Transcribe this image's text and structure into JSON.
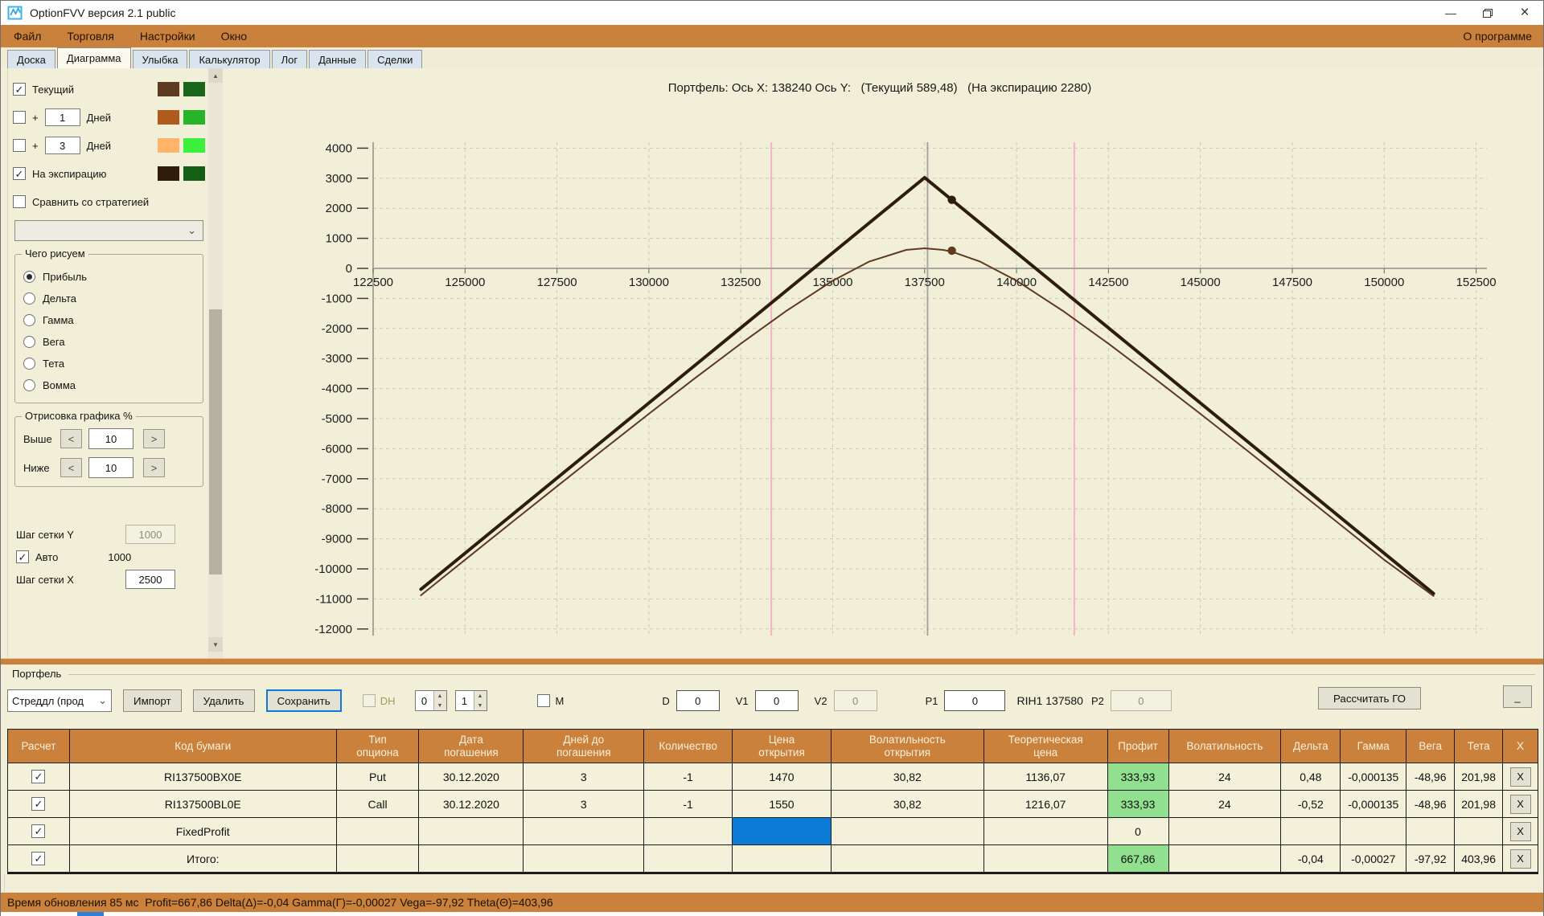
{
  "window": {
    "title": "OptionFVV версия 2.1 public"
  },
  "icons": {
    "app_icon": "line-chart-logo",
    "minimize_glyph": "—",
    "close_glyph": "×",
    "dropdown_chevron": "⌄",
    "spinner_up": "▲",
    "spinner_down": "▼",
    "scroll_up": "▲",
    "scroll_down": "▼",
    "check_mark": "✓"
  },
  "menu": {
    "items": [
      "Файл",
      "Торговля",
      "Настройки",
      "Окно"
    ],
    "right_item": "О программе"
  },
  "tabs": [
    {
      "label": "Доска",
      "active": false
    },
    {
      "label": "Диаграмма",
      "active": true
    },
    {
      "label": "Улыбка",
      "active": false
    },
    {
      "label": "Калькулятор",
      "active": false
    },
    {
      "label": "Лог",
      "active": false
    },
    {
      "label": "Данные",
      "active": false
    },
    {
      "label": "Сделки",
      "active": false
    }
  ],
  "sidebar": {
    "toggles": [
      {
        "checked": true,
        "label": "Текущий",
        "swatches": [
          "#5d3a20",
          "#1a661a"
        ]
      },
      {
        "checked": false,
        "plus": "+",
        "value": "1",
        "label": "Дней",
        "swatches": [
          "#b05a1e",
          "#28b428"
        ]
      },
      {
        "checked": false,
        "plus": "+",
        "value": "3",
        "label": "Дней",
        "swatches": [
          "#ffb469",
          "#3cf03c"
        ]
      },
      {
        "checked": true,
        "label": "На экспирацию",
        "swatches": [
          "#2d1d0a",
          "#156015"
        ]
      },
      {
        "checked": false,
        "label": "Сравнить со стратегией",
        "swatches": []
      }
    ],
    "strategy_dropdown_value": "",
    "draw_group": {
      "title": "Чего рисуем",
      "options": [
        {
          "label": "Прибыль",
          "selected": true
        },
        {
          "label": "Дельта",
          "selected": false
        },
        {
          "label": "Гамма",
          "selected": false
        },
        {
          "label": "Вега",
          "selected": false
        },
        {
          "label": "Тета",
          "selected": false
        },
        {
          "label": "Вомма",
          "selected": false
        }
      ]
    },
    "range_group": {
      "title": "Отрисовка графика %",
      "rows": [
        {
          "label": "Выше",
          "dec": "<",
          "value": "10",
          "inc": ">"
        },
        {
          "label": "Ниже",
          "dec": "<",
          "value": "10",
          "inc": ">"
        }
      ]
    },
    "grid_step": {
      "y_label": "Шаг сетки Y",
      "y_value": "1000",
      "auto": {
        "checked": true,
        "label": "Авто",
        "value": "1000"
      },
      "x_label": "Шаг сетки X",
      "x_value": "2500"
    }
  },
  "chart_data": {
    "type": "line",
    "title": "Портфель: Ось X: 138240 Ось Y:   (Текущий 589,48)   (На экспирацию 2280)",
    "xlabel": "",
    "ylabel": "",
    "grid": true,
    "legend_position": "none",
    "xlim": [
      122500,
      152900
    ],
    "ylim": [
      -12200,
      4100
    ],
    "x_ticks": [
      122500,
      125000,
      127500,
      130000,
      132500,
      135000,
      137500,
      140000,
      142500,
      145000,
      147500,
      150000,
      152500
    ],
    "y_ticks": [
      4000,
      3000,
      2000,
      1000,
      0,
      -1000,
      -2000,
      -3000,
      -4000,
      -5000,
      -6000,
      -7000,
      -8000,
      -9000,
      -10000,
      -11000,
      -12000
    ],
    "series": [
      {
        "name": "На экспирацию",
        "color": "#2d1d0a",
        "width": 4,
        "points": [
          [
            123800,
            -10680
          ],
          [
            137500,
            3020
          ],
          [
            151340,
            -10820
          ]
        ]
      },
      {
        "name": "Текущий",
        "color": "#5d3a20",
        "width": 2,
        "points": [
          [
            123800,
            -10880
          ],
          [
            125000,
            -9699
          ],
          [
            126250,
            -8473
          ],
          [
            127500,
            -7253
          ],
          [
            128750,
            -6040
          ],
          [
            130000,
            -4840
          ],
          [
            131250,
            -3658
          ],
          [
            132500,
            -2505
          ],
          [
            133750,
            -1406
          ],
          [
            135000,
            -412
          ],
          [
            136000,
            231
          ],
          [
            137000,
            616
          ],
          [
            137500,
            668
          ],
          [
            138000,
            616
          ],
          [
            138240,
            555
          ],
          [
            139000,
            231
          ],
          [
            140000,
            -412
          ],
          [
            141250,
            -1406
          ],
          [
            142500,
            -2505
          ],
          [
            143750,
            -3658
          ],
          [
            145000,
            -4840
          ],
          [
            146250,
            -6040
          ],
          [
            147500,
            -7253
          ],
          [
            148750,
            -8473
          ],
          [
            150000,
            -9699
          ],
          [
            151340,
            -10900
          ]
        ]
      }
    ],
    "markers": [
      {
        "x": 138240,
        "y": 2280,
        "series": "На экспирацию",
        "color": "#2d1d0a"
      },
      {
        "x": 138240,
        "y": 589.48,
        "series": "Текущий",
        "color": "#5d3a20"
      }
    ],
    "vlines": [
      {
        "x": 137580,
        "color": "#a8a79d",
        "width": 2,
        "role": "current-price-line"
      },
      {
        "x": 133330,
        "color": "#f3b3c2",
        "width": 2,
        "role": "range-line-left"
      },
      {
        "x": 141570,
        "color": "#f3b3c2",
        "width": 2,
        "role": "range-line-right"
      }
    ]
  },
  "portfolio": {
    "group_label": "Портфель",
    "strategy_combo": "Стреддл (прод",
    "import_button": "Импорт",
    "delete_button": "Удалить",
    "save_button": "Сохранить",
    "dh": {
      "label": "DH",
      "checked": false,
      "disabled": true
    },
    "spinners": [
      "0",
      "1"
    ],
    "m": {
      "label": "M",
      "checked": false
    },
    "fields": [
      {
        "label": "D",
        "value": "0",
        "disabled": false
      },
      {
        "label": "V1",
        "value": "0",
        "disabled": false
      },
      {
        "label": "V2",
        "value": "0",
        "disabled": true
      },
      {
        "label": "P1",
        "value": "0",
        "disabled": false
      }
    ],
    "ticker": "RIH1 137580",
    "p2": {
      "label": "P2",
      "value": "0",
      "disabled": true
    },
    "calc_button": "Рассчитать ГО",
    "collapse_button": "_"
  },
  "table": {
    "headers": [
      "Расчет",
      "Код бумаги",
      "Тип\nопциона",
      "Дата\nпогашения",
      "Дней до\nпогашения",
      "Количество",
      "Цена\nоткрытия",
      "Волатильность\nоткрытия",
      "Теоретическая\nцена",
      "Профит",
      "Волатильность",
      "Дельта",
      "Гамма",
      "Вега",
      "Тета",
      "X"
    ],
    "rows": [
      {
        "checked": true,
        "code": "RI137500BX0E",
        "type": "Put",
        "expiry": "30.12.2020",
        "days": "3",
        "qty": "-1",
        "open_price": "1470",
        "open_vol": "30,82",
        "theo": "1136,07",
        "profit": "333,93",
        "profit_green": true,
        "vol": "24",
        "delta": "0,48",
        "gamma": "-0,000135",
        "vega": "-48,96",
        "theta": "201,98",
        "x": "X"
      },
      {
        "checked": true,
        "code": "RI137500BL0E",
        "type": "Call",
        "expiry": "30.12.2020",
        "days": "3",
        "qty": "-1",
        "open_price": "1550",
        "open_vol": "30,82",
        "theo": "1216,07",
        "profit": "333,93",
        "profit_green": true,
        "vol": "24",
        "delta": "-0,52",
        "gamma": "-0,000135",
        "vega": "-48,96",
        "theta": "201,98",
        "x": "X"
      },
      {
        "checked": true,
        "code": "FixedProfit",
        "type": "",
        "expiry": "",
        "days": "",
        "qty": "",
        "open_price": "",
        "open_price_selected": true,
        "open_vol": "",
        "theo": "",
        "profit": "0",
        "profit_green": false,
        "vol": "",
        "delta": "",
        "gamma": "",
        "vega": "",
        "theta": "",
        "x": "X"
      },
      {
        "checked": true,
        "code": "Итого:",
        "type": "",
        "expiry": "",
        "days": "",
        "qty": "",
        "open_price": "",
        "open_vol": "",
        "theo": "",
        "profit": "667,86",
        "profit_green": true,
        "vol": "",
        "delta": "-0,04",
        "gamma": "-0,00027",
        "vega": "-97,92",
        "theta": "403,96",
        "x": "X"
      }
    ]
  },
  "status_bar": "Время обновления 85 мс  Profit=667,86 Delta(Δ)=-0,04 Gamma(Г)=-0,00027 Vega=-97,92 Theta(Θ)=403,96",
  "colors": {
    "accent_orange": "#c9813b",
    "profit_green": "#90e090",
    "selection_blue": "#0b7bd6",
    "panel_bg": "#f2efd8"
  }
}
